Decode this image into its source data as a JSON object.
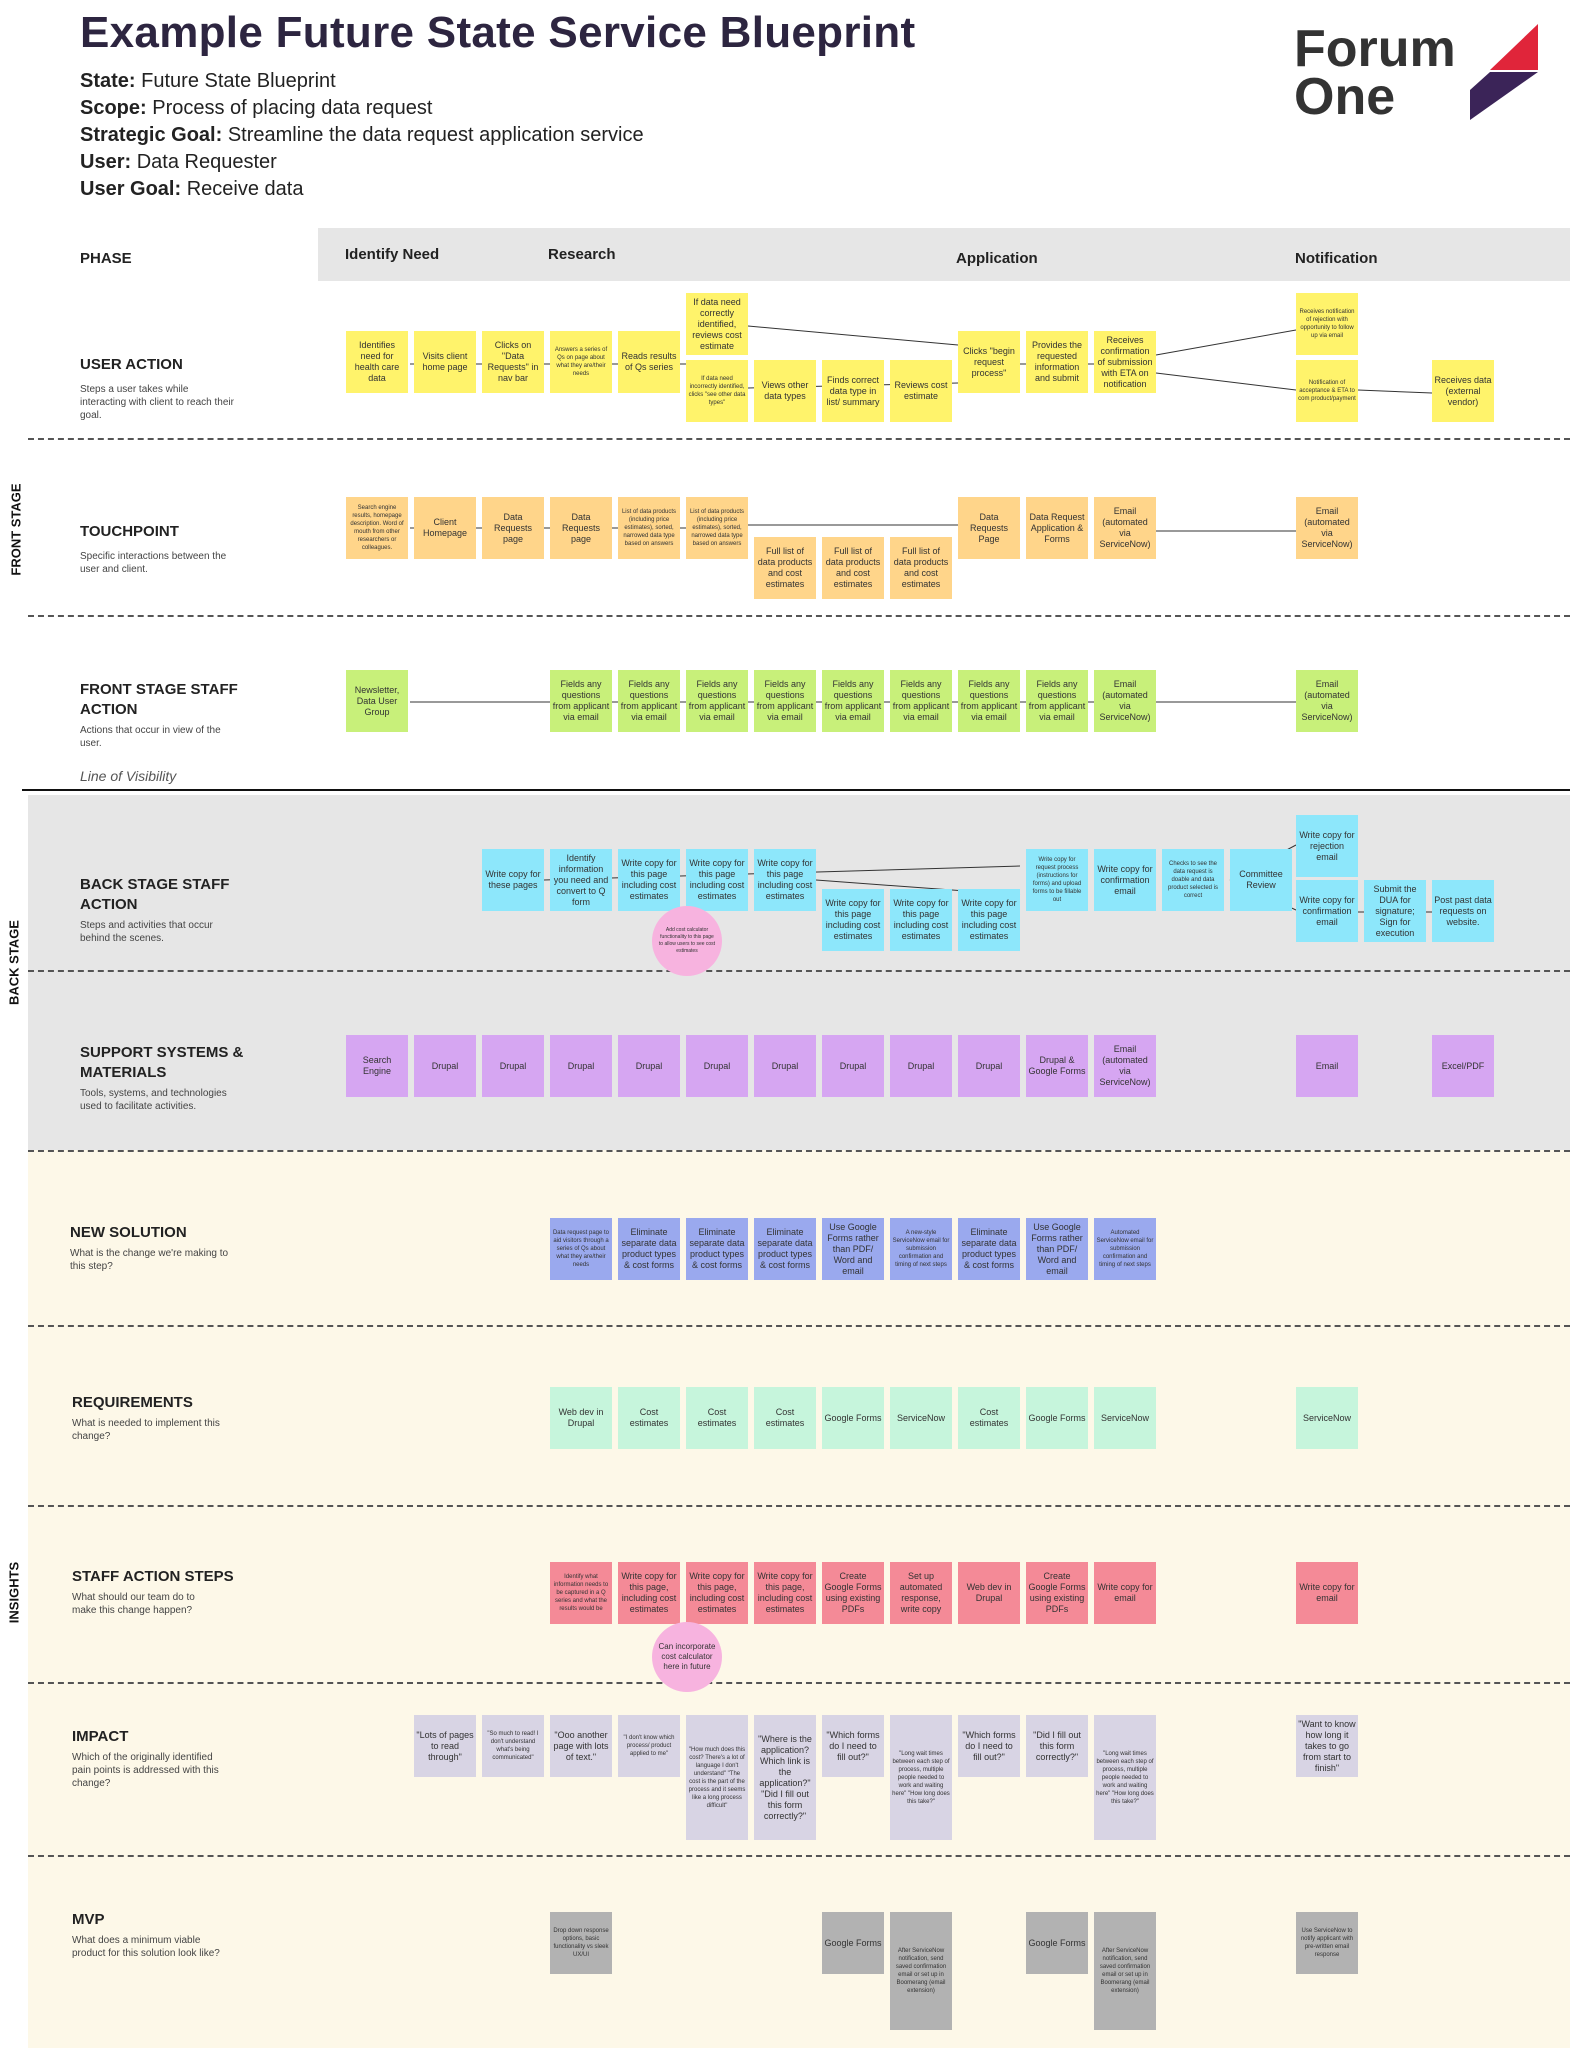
{
  "title": "Example Future State Service Blueprint",
  "meta": [
    {
      "label": "State:",
      "value": "Future State Blueprint"
    },
    {
      "label": "Scope:",
      "value": "Process of placing data request"
    },
    {
      "label": "Strategic Goal:",
      "value": "Streamline the data request application service"
    },
    {
      "label": "User:",
      "value": "Data Requester"
    },
    {
      "label": "User Goal:",
      "value": "Receive data"
    }
  ],
  "logo": {
    "line1": "Forum",
    "line2": "One"
  },
  "colors": {
    "logo_red": "#e0253a",
    "logo_purple": "#3b2458"
  },
  "phase": {
    "title": "PHASE",
    "phases": [
      "Identify Need",
      "Research",
      "Application",
      "Notification"
    ]
  },
  "side_labels": {
    "front": "FRONT STAGE",
    "back": "BACK STAGE",
    "insights": "INSIGHTS"
  },
  "line_of_visibility": "Line of Visibility",
  "rows": {
    "user_action": {
      "title": "USER ACTION",
      "sub": "Steps a user takes while interacting with client to reach their goal."
    },
    "touchpoint": {
      "title": "TOUCHPOINT",
      "sub": "Specific interactions between the user and client."
    },
    "front_staff": {
      "title": "FRONT STAGE STAFF ACTION",
      "sub": "Actions that occur in view of the user."
    },
    "back_staff": {
      "title": "BACK STAGE STAFF ACTION",
      "sub": "Steps and activities that occur behind the scenes."
    },
    "support": {
      "title": "SUPPORT SYSTEMS & MATERIALS",
      "sub": "Tools, systems, and technologies used to facilitate activities."
    },
    "new_solution": {
      "title": "NEW SOLUTION",
      "sub": "What is the change we're making to this step?"
    },
    "requirements": {
      "title": "REQUIREMENTS",
      "sub": "What is needed to implement this change?"
    },
    "staff_steps": {
      "title": "STAFF ACTION STEPS",
      "sub": "What should our team do to make this change happen?"
    },
    "impact": {
      "title": "IMPACT",
      "sub": "Which of the originally identified pain points is addressed with this change?"
    },
    "mvp": {
      "title": "MVP",
      "sub": "What does a minimum viable product for this solution look like?"
    }
  },
  "notes": {
    "ua1": "Identifies need for health care data",
    "ua2": "Visits client home page",
    "ua3": "Clicks on \"Data Requests\" in nav bar",
    "ua4": "Answers a series of Qs on page about what they are/their needs",
    "ua5": "Reads results of Qs series",
    "ua6a": "If data need correctly identified, reviews cost estimate",
    "ua6b": "If data need incorrectly identified, clicks \"see other data types\"",
    "ua7": "Views other data types",
    "ua8": "Finds correct data type in list/ summary",
    "ua9": "Reviews cost estimate",
    "ua10": "Clicks \"begin request process\"",
    "ua11": "Provides the requested information and submit",
    "ua12": "Receives confirmation of submission with ETA on notification",
    "ua13a": "Receives notification of rejection with opportunity to follow up via email",
    "ua13b": "Notification of acceptance & ETA to com product/payment",
    "ua14": "Receives data (external vendor)",
    "tp1": "Search engine results, homepage description. Word of mouth from other researchers or colleagues.",
    "tp2": "Client Homepage",
    "tp3": "Data Requests page",
    "tp4": "Data Requests page",
    "tp5": "List of data products (including price estimates), sorted, narrowed data type based on answers",
    "tp6": "List of data products (including price estimates), sorted, narrowed data type based on answers",
    "tp7": "Full list of data products and cost estimates",
    "tp8": "Full list of data products and cost estimates",
    "tp9": "Full list of data products and cost estimates",
    "tp10": "Data Requests Page",
    "tp11": "Data Request Application & Forms",
    "tp12": "Email (automated via ServiceNow)",
    "tp13": "Email (automated via ServiceNow)",
    "fs1": "Newsletter, Data User Group",
    "fs2": "Fields any questions from applicant via email",
    "fs3": "Email (automated via ServiceNow)",
    "fs4": "Email (automated via ServiceNow)",
    "bs1": "Write copy for these pages",
    "bs2": "Identify information you need and convert to Q form",
    "bs3": "Write copy for this page including cost estimates",
    "bs4": "Write copy for this page including cost estimates",
    "bs5": "Write copy for this page including cost estimates",
    "bs6": "Write copy for this page including cost estimates",
    "bs7": "Write copy for request process (instructions for forms) and upload forms to be fillable out",
    "bs8": "Write copy for confirmation email",
    "bs9": "Checks to see the data request is doable and data product selected is correct",
    "bs10": "Committee Review",
    "bs11": "Write copy for rejection email",
    "bs12": "Write copy for confirmation email",
    "bs13": "Submit the DUA for signature; Sign for execution",
    "bs14": "Post past data requests on website.",
    "bs_pink": "Add cost calculator functionality to this page to allow users to see cost estimates",
    "ss1": "Search Engine",
    "ss2": "Drupal",
    "ss3": "Drupal & Google Forms",
    "ss4": "Email (automated via ServiceNow)",
    "ss5": "Email",
    "ss6": "Excel/PDF",
    "ns1": "Data request page to aid visitors through a series of Qs about what they are/their needs",
    "ns2": "Eliminate separate data product types & cost forms",
    "ns3": "Use Google Forms rather than PDF/ Word and email",
    "ns4": "A new-style ServiceNow email for submission confirmation and timing of next steps",
    "ns5": "Automated ServiceNow email for submission confirmation and timing of next steps",
    "rq1": "Web dev in Drupal",
    "rq2": "Cost estimates",
    "rq3": "Google Forms",
    "rq4": "ServiceNow",
    "sa1": "Identify what information needs to be captured in a Q series and what the results would be",
    "sa2": "Write copy for this page, including cost estimates",
    "sa3": "Create Google Forms using existing PDFs",
    "sa4": "Set up automated response, write copy",
    "sa5": "Web dev in Drupal",
    "sa6": "Write copy for email",
    "sa_pink": "Can incorporate cost calculator here in future",
    "im1": "\"Lots of pages to read through\"",
    "im2": "\"So much to read! I don't understand what's being communicated\"",
    "im3": "\"Ooo another page with lots of text.\"",
    "im4": "\"I don't know which process/ product applied to me\"",
    "im5": "\"How much does this cost? There's a lot of language I don't understand\" \"The cost is the part of the process and it seems like a long process difficult\"",
    "im6": "\"Where is the application? Which link is the application?\" \"Did I fill out this form correctly?\"",
    "im7": "\"Which forms do I need to fill out?\"",
    "im8": "\"Long wait times between each step of process, multiple people needed to work and waiting here\" \"How long does this take?\"",
    "im9": "\"Which forms do I need to fill out?\"",
    "im10": "\"Did I fill out this form correctly?\"",
    "im11": "\"Long wait times between each step of process, multiple people needed to work and waiting here\" \"How long does this take?\"",
    "im12": "\"Want to know how long it takes to go from start to finish\"",
    "mv1": "Drop down response options, basic functionality vs sleek UX/UI",
    "mv2": "Google Forms",
    "mv3": "After ServiceNow notification, send saved confirmation email or set up in Boomerang (email extension)",
    "mv4": "Use ServiceNow to notify applicant with pre-written email response"
  }
}
